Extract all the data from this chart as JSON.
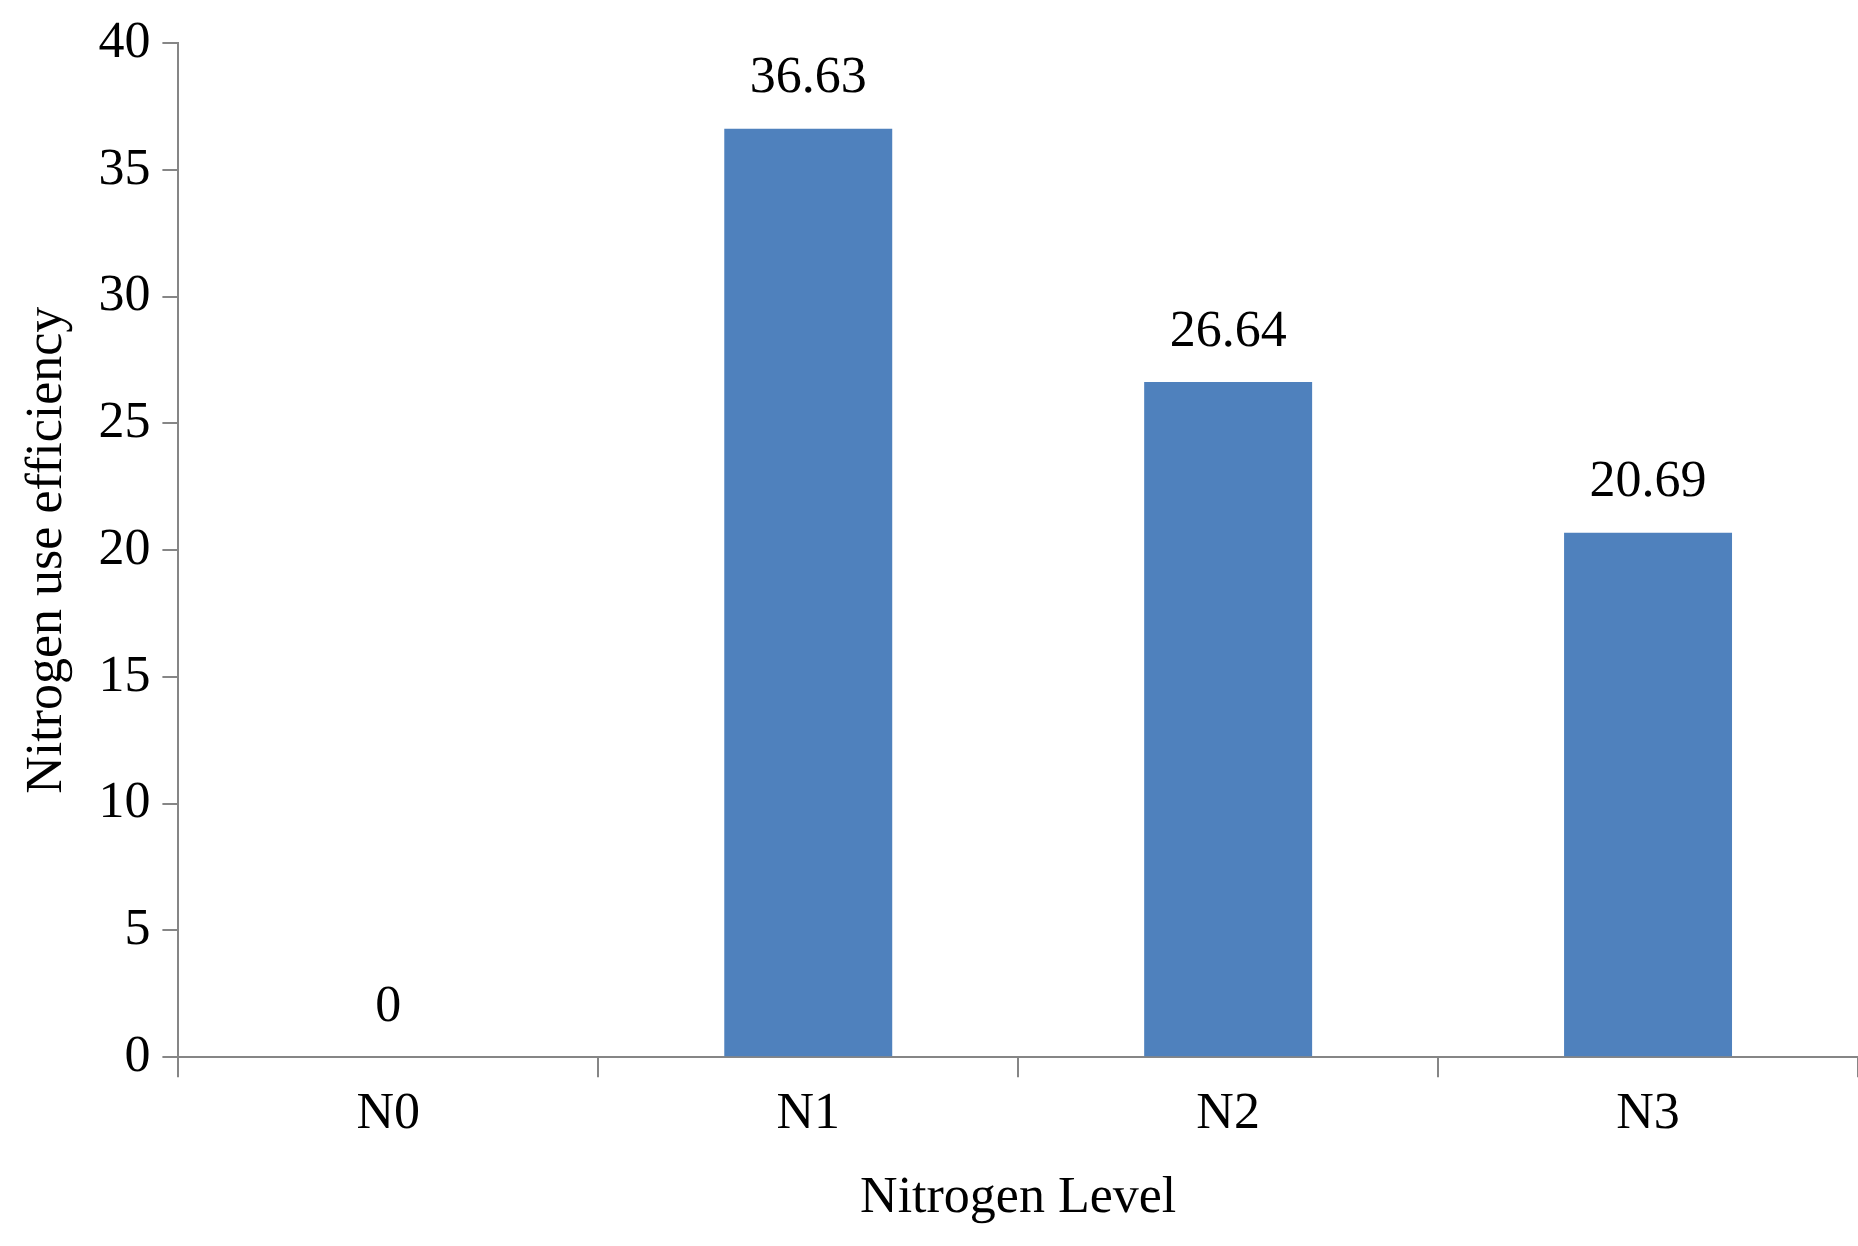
{
  "chart_data": {
    "type": "bar",
    "xlabel": "Nitrogen Level",
    "ylabel": "Nitrogen use efficiency",
    "categories": [
      "N0",
      "N1",
      "N2",
      "N3"
    ],
    "values": [
      0,
      36.63,
      26.64,
      20.69
    ],
    "color": "#4f81bd",
    "ylim": [
      0,
      40
    ],
    "yticks": [
      0,
      5,
      10,
      15,
      20,
      25,
      30,
      35,
      40
    ],
    "grid": false,
    "legend": false,
    "data_labels": true
  }
}
